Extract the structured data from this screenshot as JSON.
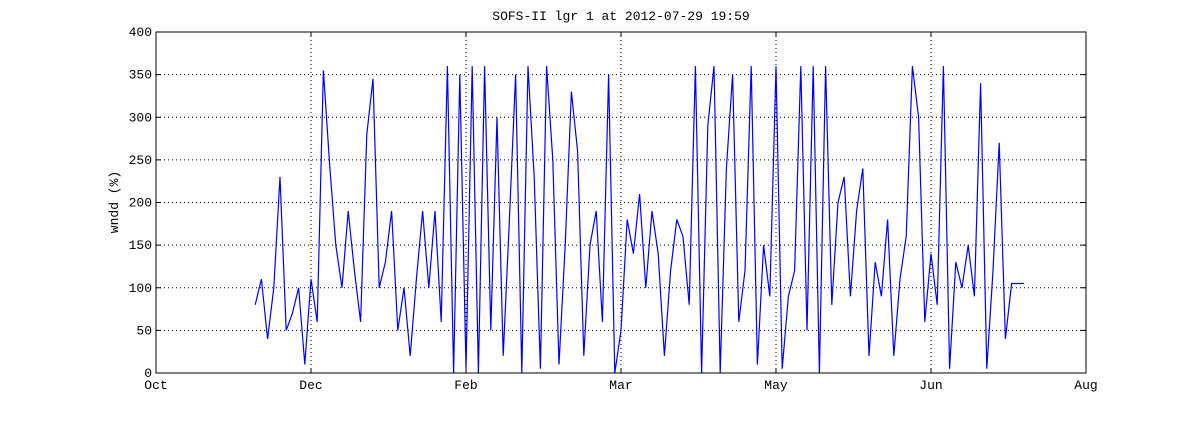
{
  "chart_data": {
    "type": "line",
    "title": "SOFS-II lgr 1 at 2012-07-29 19:59",
    "ylabel": "wndd (%)",
    "x": [
      32,
      34,
      36,
      38,
      40,
      42,
      44,
      46,
      48,
      50,
      52,
      54,
      56,
      58,
      60,
      62,
      64,
      66,
      68,
      70,
      72,
      74,
      76,
      78,
      80,
      82,
      84,
      86,
      88,
      90,
      92,
      94,
      96,
      98,
      100,
      102,
      104,
      106,
      108,
      110,
      112,
      114,
      116,
      118,
      120,
      122,
      124,
      126,
      128,
      130,
      132,
      134,
      136,
      138,
      140,
      142,
      144,
      146,
      148,
      150,
      152,
      154,
      156,
      158,
      160,
      162,
      164,
      166,
      168,
      170,
      172,
      174,
      176,
      178,
      180,
      182,
      184,
      186,
      188,
      190,
      192,
      194,
      196,
      198,
      200,
      202,
      204,
      206,
      208,
      210,
      212,
      214,
      216,
      218,
      220,
      222,
      224,
      226,
      228,
      230,
      232,
      234,
      236,
      238,
      240,
      242,
      244,
      246,
      248,
      250,
      252,
      254,
      256,
      258,
      260,
      262,
      264,
      266,
      268,
      270,
      272,
      274,
      276,
      280
    ],
    "series": [
      {
        "name": "wndd",
        "color": "#0000ff",
        "values": [
          80,
          110,
          40,
          100,
          230,
          50,
          70,
          100,
          10,
          110,
          60,
          355,
          245,
          150,
          100,
          190,
          120,
          60,
          280,
          345,
          100,
          130,
          190,
          50,
          100,
          20,
          110,
          190,
          100,
          190,
          60,
          360,
          0,
          350,
          5,
          360,
          0,
          360,
          50,
          300,
          20,
          180,
          350,
          0,
          360,
          230,
          5,
          360,
          250,
          10,
          150,
          330,
          260,
          20,
          150,
          190,
          60,
          350,
          0,
          50,
          180,
          140,
          210,
          100,
          190,
          140,
          20,
          120,
          180,
          160,
          80,
          360,
          0,
          290,
          360,
          0,
          240,
          350,
          60,
          120,
          360,
          10,
          150,
          90,
          360,
          5,
          90,
          120,
          360,
          50,
          360,
          0,
          360,
          80,
          200,
          230,
          90,
          190,
          240,
          20,
          130,
          90,
          180,
          20,
          110,
          160,
          360,
          300,
          60,
          140,
          80,
          360,
          5,
          130,
          100,
          150,
          90,
          340,
          5,
          120,
          270,
          40,
          105,
          105
        ]
      }
    ],
    "xlim": [
      0,
      300
    ],
    "xticks": [
      {
        "value": 0,
        "label": "Oct"
      },
      {
        "value": 50,
        "label": "Dec"
      },
      {
        "value": 100,
        "label": "Feb"
      },
      {
        "value": 150,
        "label": "Mar"
      },
      {
        "value": 200,
        "label": "May"
      },
      {
        "value": 250,
        "label": "Jun"
      },
      {
        "value": 300,
        "label": "Aug"
      }
    ],
    "ylim": [
      0,
      400
    ],
    "yticks": [
      0,
      50,
      100,
      150,
      200,
      250,
      300,
      350,
      400
    ],
    "grid": true
  }
}
